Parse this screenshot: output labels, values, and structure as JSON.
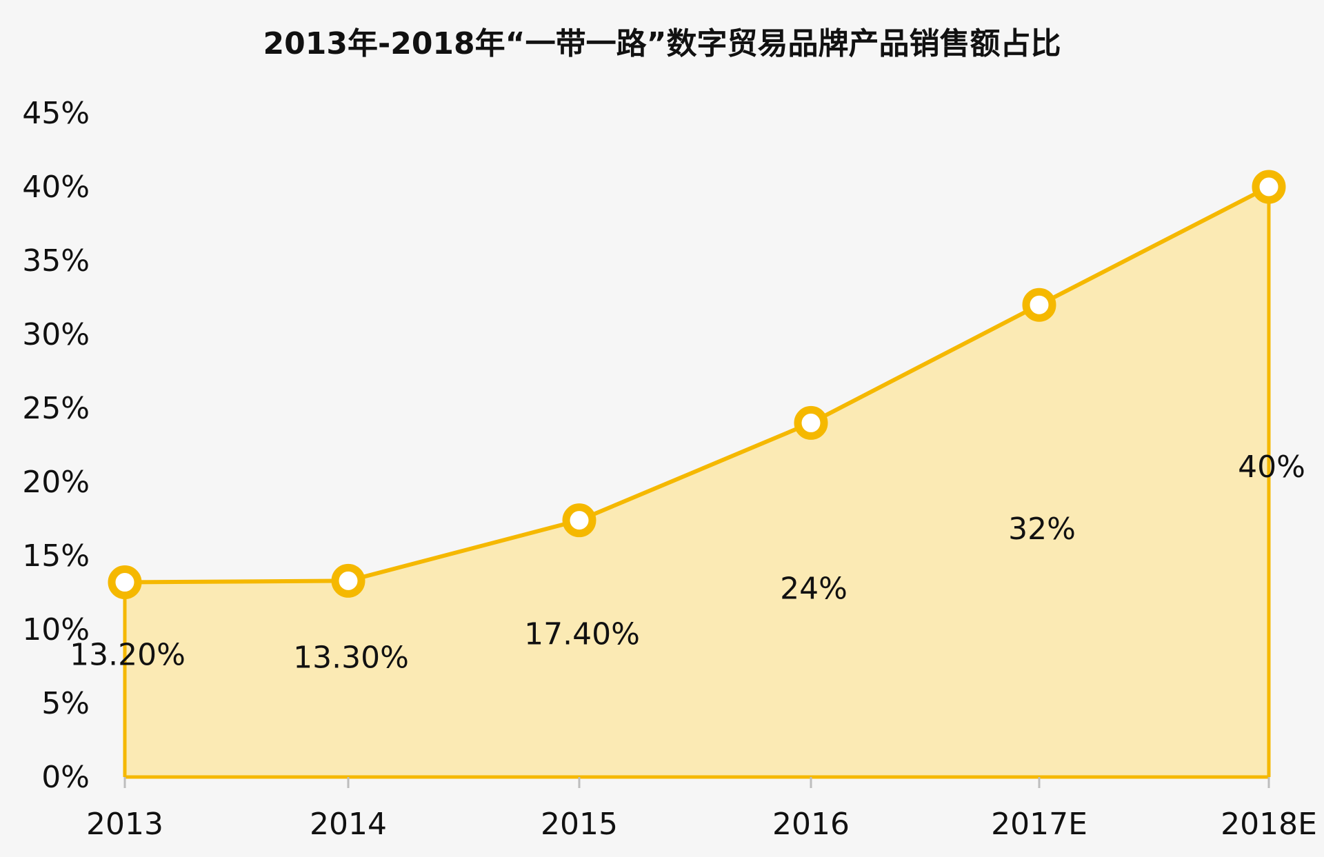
{
  "chart_data": {
    "type": "area",
    "title": "2013年-2018年“一带一路”数字贸易品牌产品销售额占比",
    "xlabel": "",
    "ylabel": "",
    "categories": [
      "2013",
      "2014",
      "2015",
      "2016",
      "2017E",
      "2018E"
    ],
    "values": [
      13.2,
      13.3,
      17.4,
      24,
      32,
      40
    ],
    "data_labels": [
      "13.20%",
      "13.30%",
      "17.40%",
      "24%",
      "32%",
      "40%"
    ],
    "ylim": [
      0,
      45
    ],
    "yticks": [
      0,
      5,
      10,
      15,
      20,
      25,
      30,
      35,
      40,
      45
    ],
    "ytick_labels": [
      "0%",
      "5%",
      "10%",
      "15%",
      "20%",
      "25%",
      "30%",
      "35%",
      "40%",
      "45%"
    ],
    "grid": false,
    "legend": "none",
    "colors": {
      "line": "#f5b800",
      "fill": "#fbe7a8",
      "marker_fill": "#ffffff",
      "text": "#111111",
      "background": "#f6f6f6"
    }
  }
}
